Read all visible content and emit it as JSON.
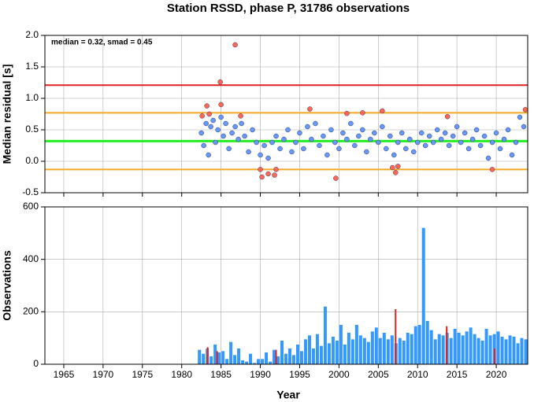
{
  "chart_data": [
    {
      "type": "scatter",
      "title": "Station RSSD, phase P, 31786 observations",
      "y_label": "Median residual [s]",
      "annotation": "median = 0.32, smad = 0.45",
      "xlim": [
        1962.6,
        2024
      ],
      "xticks": [
        1965,
        1970,
        1975,
        1980,
        1985,
        1990,
        1995,
        2000,
        2005,
        2010,
        2015,
        2020
      ],
      "ylim": [
        -0.5,
        2.0
      ],
      "yticks": [
        {
          "value": -0.5,
          "label": "-0.5"
        },
        {
          "value": 0,
          "label": "0.0"
        },
        0.5,
        {
          "value": 1,
          "label": "1.0"
        },
        1.5,
        {
          "value": 2,
          "label": "2.0"
        }
      ],
      "grid": true,
      "hlines": [
        {
          "value": 1.21,
          "color": "#e02020"
        },
        {
          "value": 0.77,
          "color": "#f5a623"
        },
        {
          "value": -0.13,
          "color": "#f5a623"
        },
        {
          "value": 0.32,
          "color": "#22ee22"
        }
      ],
      "series": [
        {
          "color": "#6699ff",
          "x": [
            1982.5,
            1982.8,
            1983.1,
            1983.4,
            1983.7,
            1984.0,
            1984.3,
            1984.6,
            1985.0,
            1985.3,
            1985.6,
            1986.0,
            1986.4,
            1986.8,
            1987.2,
            1987.6,
            1988.0,
            1988.5,
            1989.0,
            1989.5,
            1990.0,
            1990.5,
            1991.0,
            1991.5,
            1992.0,
            1992.5,
            1993.0,
            1993.5,
            1994.0,
            1994.5,
            1995.0,
            1995.5,
            1996.0,
            1996.5,
            1997.0,
            1997.5,
            1998.0,
            1998.5,
            1999.0,
            1999.5,
            2000.0,
            2000.5,
            2001.0,
            2001.5,
            2002.0,
            2002.5,
            2003.0,
            2003.5,
            2004.0,
            2004.5,
            2005.0,
            2005.5,
            2006.0,
            2006.5,
            2007.0,
            2007.5,
            2008.0,
            2008.5,
            2009.0,
            2009.5,
            2010.0,
            2010.5,
            2011.0,
            2011.5,
            2012.0,
            2012.5,
            2013.0,
            2013.5,
            2014.0,
            2014.5,
            2015.0,
            2015.5,
            2016.0,
            2016.5,
            2017.0,
            2017.5,
            2018.0,
            2018.5,
            2019.0,
            2019.5,
            2020.0,
            2020.5,
            2021.0,
            2021.5,
            2022.0,
            2022.5,
            2023.0,
            2023.5
          ],
          "values": [
            0.45,
            0.25,
            0.6,
            0.1,
            0.55,
            0.65,
            0.3,
            0.5,
            0.7,
            0.4,
            0.6,
            0.2,
            0.45,
            0.55,
            0.35,
            0.6,
            0.4,
            0.15,
            0.5,
            0.3,
            0.1,
            0.25,
            0.05,
            0.3,
            0.4,
            0.2,
            0.35,
            0.5,
            0.15,
            0.3,
            0.45,
            0.2,
            0.55,
            0.35,
            0.6,
            0.25,
            0.4,
            0.1,
            0.5,
            0.3,
            0.2,
            0.45,
            0.35,
            0.6,
            0.25,
            0.4,
            0.5,
            0.15,
            0.35,
            0.45,
            0.3,
            0.55,
            0.2,
            0.4,
            0.1,
            0.3,
            0.45,
            0.2,
            0.35,
            0.15,
            0.3,
            0.45,
            0.25,
            0.4,
            0.3,
            0.5,
            0.35,
            0.45,
            0.25,
            0.4,
            0.55,
            0.3,
            0.45,
            0.2,
            0.35,
            0.5,
            0.25,
            0.4,
            0.05,
            0.3,
            0.45,
            0.2,
            0.35,
            0.5,
            0.1,
            0.3,
            0.7,
            0.55
          ]
        },
        {
          "color": "#ff6655",
          "x": [
            1982.6,
            1983.2,
            1983.5,
            1984.9,
            1985.0,
            1986.8,
            1987.5,
            1990.0,
            1990.2,
            1991.0,
            1991.8,
            1992.0,
            1996.3,
            1999.6,
            2001.0,
            2003.0,
            2005.5,
            2006.8,
            2007.2,
            2007.5,
            2013.8,
            2019.5,
            2023.7
          ],
          "values": [
            0.72,
            0.88,
            0.75,
            1.26,
            0.9,
            1.85,
            0.72,
            -0.13,
            -0.25,
            -0.2,
            -0.22,
            -0.13,
            0.83,
            -0.27,
            0.76,
            0.77,
            0.8,
            -0.1,
            -0.18,
            -0.08,
            0.71,
            -0.13,
            0.82
          ]
        }
      ]
    },
    {
      "type": "histogram",
      "x_label": "Year",
      "y_label": "Observations",
      "xlim": [
        1962.6,
        2024
      ],
      "xticks": [
        1965,
        1970,
        1975,
        1980,
        1985,
        1990,
        1995,
        2000,
        2005,
        2010,
        2015,
        2020
      ],
      "ylim": [
        0,
        600
      ],
      "yticks": [
        0,
        200,
        400,
        600
      ],
      "grid": true,
      "color": "#3399ff",
      "bins": [
        1982,
        1982.5,
        1983,
        1983.5,
        1984,
        1984.5,
        1985,
        1985.5,
        1986,
        1986.5,
        1987,
        1987.5,
        1988,
        1988.5,
        1989,
        1989.5,
        1990,
        1990.5,
        1991,
        1991.5,
        1992,
        1992.5,
        1993,
        1993.5,
        1994,
        1994.5,
        1995,
        1995.5,
        1996,
        1996.5,
        1997,
        1997.5,
        1998,
        1998.5,
        1999,
        1999.5,
        2000,
        2000.5,
        2001,
        2001.5,
        2002,
        2002.5,
        2003,
        2003.5,
        2004,
        2004.5,
        2005,
        2005.5,
        2006,
        2006.5,
        2007,
        2007.5,
        2008,
        2008.5,
        2009,
        2009.5,
        2010,
        2010.5,
        2011,
        2011.5,
        2012,
        2012.5,
        2013,
        2013.5,
        2014,
        2014.5,
        2015,
        2015.5,
        2016,
        2016.5,
        2017,
        2017.5,
        2018,
        2018.5,
        2019,
        2019.5,
        2020,
        2020.5,
        2021,
        2021.5,
        2022,
        2022.5,
        2023,
        2023.5,
        2024
      ],
      "values": [
        55,
        40,
        60,
        30,
        75,
        45,
        50,
        20,
        85,
        35,
        60,
        15,
        10,
        40,
        5,
        20,
        20,
        45,
        10,
        55,
        30,
        90,
        40,
        60,
        35,
        75,
        50,
        95,
        110,
        60,
        115,
        70,
        220,
        80,
        105,
        90,
        150,
        75,
        120,
        95,
        150,
        110,
        100,
        85,
        125,
        140,
        100,
        120,
        95,
        110,
        80,
        100,
        90,
        120,
        115,
        145,
        150,
        520,
        165,
        130,
        95,
        115,
        110,
        120,
        100,
        135,
        120,
        110,
        125,
        140,
        115,
        100,
        90,
        135,
        110,
        115,
        125,
        105,
        95,
        110,
        105,
        80,
        100,
        95
      ],
      "series": [
        {
          "color": "#e02020",
          "x": [
            1983.3,
            1984.5,
            1992.0,
            2007.2,
            2013.7,
            2019.8
          ],
          "values": [
            65,
            50,
            55,
            210,
            145,
            60
          ]
        }
      ]
    }
  ]
}
